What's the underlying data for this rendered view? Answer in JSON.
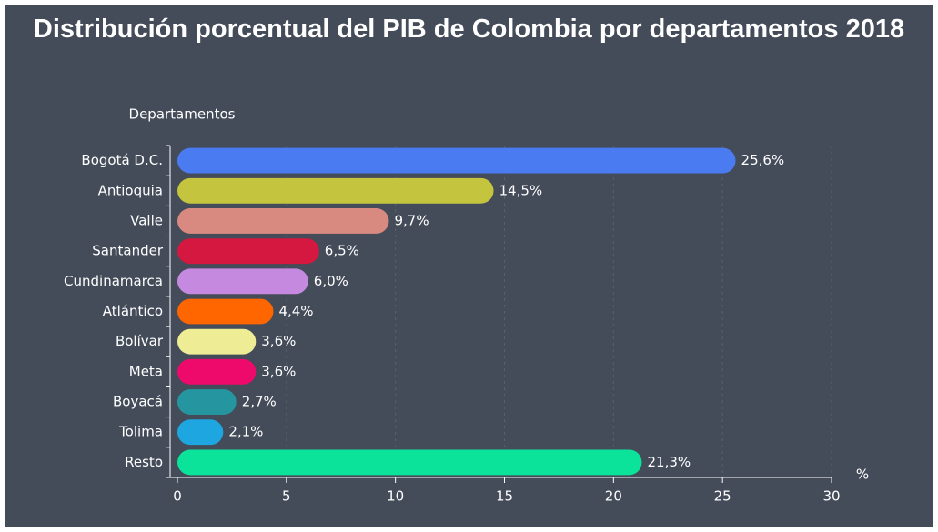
{
  "chart_data": {
    "type": "bar",
    "orientation": "horizontal",
    "title": "Distribución porcentual del PIB de Colombia por departamentos 2018",
    "y_axis_label": "Departamentos",
    "x_axis_label": "%",
    "categories": [
      "Bogotá D.C.",
      "Antioquia",
      "Valle",
      "Santander",
      "Cundinamarca",
      "Atlántico",
      "Bolívar",
      "Meta",
      "Boyacá",
      "Tolima",
      "Resto"
    ],
    "values": [
      25.6,
      14.5,
      9.7,
      6.5,
      6.0,
      4.4,
      3.6,
      3.6,
      2.7,
      2.1,
      21.3
    ],
    "value_labels": [
      "25,6%",
      "14,5%",
      "9,7%",
      "6,5%",
      "6,0%",
      "4,4%",
      "3,6%",
      "3,6%",
      "2,7%",
      "2,1%",
      "21,3%"
    ],
    "colors": [
      "#4a7bf0",
      "#c5c43e",
      "#d98a80",
      "#d4183f",
      "#c58ae0",
      "#ff6600",
      "#eeec95",
      "#ee0a6a",
      "#2596a0",
      "#1ea6e0",
      "#0ce39a"
    ],
    "xlim": [
      0,
      30
    ],
    "xticks": [
      0,
      5,
      10,
      15,
      20,
      25,
      30
    ],
    "grid": true
  }
}
